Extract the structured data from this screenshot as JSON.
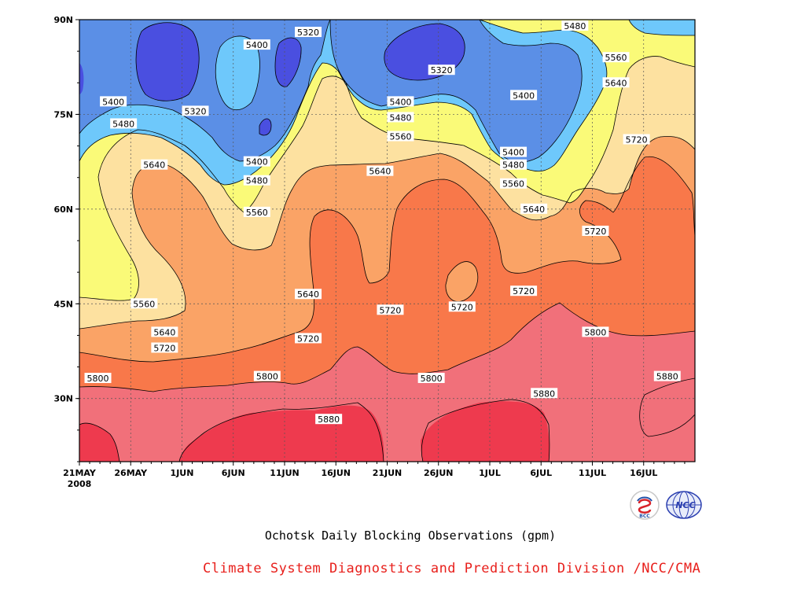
{
  "chart_data": {
    "type": "contour",
    "title": "Ochotsk Daily Blocking Observations (gpm)",
    "x_tick_labels": [
      "21MAY",
      "26MAY",
      "1JUN",
      "6JUN",
      "11JUN",
      "16JUN",
      "21JUN",
      "26JUN",
      "1JUL",
      "6JUL",
      "11JUL",
      "16JUL"
    ],
    "year_label": "2008",
    "y_tick_labels": [
      "30N",
      "45N",
      "60N",
      "75N",
      "90N"
    ],
    "x_range": [
      "21MAY2008",
      "20JUL2008"
    ],
    "y_range": [
      20,
      90
    ],
    "y_ticks": [
      30,
      45,
      60,
      75,
      90
    ],
    "contour_levels": [
      5320,
      5400,
      5480,
      5560,
      5640,
      5720,
      5800,
      5880
    ],
    "fill_colors": {
      "below_5320": "#4a4fe0",
      "5320_5400": "#5b8fe6",
      "5400_5480": "#6ec8fb",
      "5480_5560": "#fafa78",
      "5560_5640": "#fde1a0",
      "5640_5720": "#faa366",
      "5720_5800": "#f8784a",
      "5800_5880": "#f1707a",
      "above_5880": "#ee3a4e"
    },
    "grid": true,
    "contour_labels": [
      {
        "text": "5320",
        "day": 21,
        "lat": 88
      },
      {
        "text": "5400",
        "day": 16,
        "lat": 86
      },
      {
        "text": "5480",
        "day": 47,
        "lat": 89
      },
      {
        "text": "5560",
        "day": 51,
        "lat": 84
      },
      {
        "text": "5640",
        "day": 51,
        "lat": 80
      },
      {
        "text": "5320",
        "day": 34,
        "lat": 82
      },
      {
        "text": "5400",
        "day": 2,
        "lat": 77
      },
      {
        "text": "5320",
        "day": 10,
        "lat": 75.5
      },
      {
        "text": "5400",
        "day": 30,
        "lat": 77
      },
      {
        "text": "5400",
        "day": 42,
        "lat": 78
      },
      {
        "text": "5480",
        "day": 30,
        "lat": 74.5
      },
      {
        "text": "5480",
        "day": 3,
        "lat": 73.5
      },
      {
        "text": "5560",
        "day": 30,
        "lat": 71.5
      },
      {
        "text": "5400",
        "day": 41,
        "lat": 69
      },
      {
        "text": "5480",
        "day": 41,
        "lat": 67
      },
      {
        "text": "5560",
        "day": 41,
        "lat": 64
      },
      {
        "text": "5640",
        "day": 6,
        "lat": 67
      },
      {
        "text": "5400",
        "day": 16,
        "lat": 67.5
      },
      {
        "text": "5480",
        "day": 16,
        "lat": 64.5
      },
      {
        "text": "5640",
        "day": 28,
        "lat": 66
      },
      {
        "text": "5560",
        "day": 16,
        "lat": 59.5
      },
      {
        "text": "5640",
        "day": 43,
        "lat": 60
      },
      {
        "text": "5720",
        "day": 53,
        "lat": 71
      },
      {
        "text": "5720",
        "day": 49,
        "lat": 56.5
      },
      {
        "text": "5640",
        "day": 21,
        "lat": 46.5
      },
      {
        "text": "5720",
        "day": 42,
        "lat": 47
      },
      {
        "text": "5560",
        "day": 5,
        "lat": 45
      },
      {
        "text": "5720",
        "day": 29,
        "lat": 44
      },
      {
        "text": "5720",
        "day": 36,
        "lat": 44.5
      },
      {
        "text": "5640",
        "day": 7,
        "lat": 40.5
      },
      {
        "text": "5720",
        "day": 21,
        "lat": 39.5
      },
      {
        "text": "5720",
        "day": 7,
        "lat": 38
      },
      {
        "text": "5800",
        "day": 49,
        "lat": 40.5
      },
      {
        "text": "5800",
        "day": 0.5,
        "lat": 33.2
      },
      {
        "text": "5800",
        "day": 17,
        "lat": 33.5
      },
      {
        "text": "5800",
        "day": 33,
        "lat": 33.2
      },
      {
        "text": "5880",
        "day": 44,
        "lat": 30.8
      },
      {
        "text": "5880",
        "day": 56,
        "lat": 33.5
      },
      {
        "text": "5880",
        "day": 23,
        "lat": 26.7
      }
    ]
  },
  "footer": {
    "title": "Ochotsk Daily Blocking Observations (gpm)",
    "credit": "Climate System Diagnostics and Prediction Division /NCC/CMA"
  },
  "logos": {
    "bcc": {
      "text": "BCC"
    },
    "ncc": {
      "text": "NCC"
    }
  }
}
